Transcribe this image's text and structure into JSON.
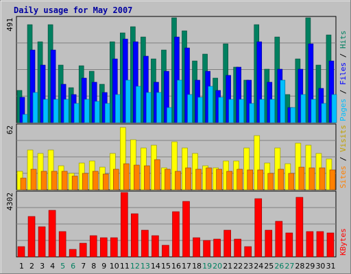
{
  "chart_data": [
    {
      "type": "bar",
      "title": "Daily usage for May 2007",
      "ymax_label": "491",
      "ylim": [
        0,
        491
      ],
      "grid": true,
      "legend_placement": "right-vertical",
      "categories": [
        "1",
        "2",
        "3",
        "4",
        "5",
        "6",
        "7",
        "8",
        "9",
        "10",
        "11",
        "12",
        "13",
        "14",
        "15",
        "16",
        "17",
        "18",
        "19",
        "20",
        "21",
        "22",
        "23",
        "24",
        "25",
        "26",
        "27",
        "28",
        "29",
        "30",
        "31"
      ],
      "series": [
        {
          "name": "Hits",
          "color": "#008060",
          "values": [
            150,
            460,
            380,
            460,
            270,
            165,
            265,
            240,
            180,
            380,
            420,
            450,
            400,
            300,
            340,
            491,
            430,
            290,
            320,
            210,
            370,
            260,
            200,
            460,
            250,
            400,
            130,
            300,
            491,
            270,
            410
          ]
        },
        {
          "name": "Files",
          "color": "#0000ff",
          "values": [
            120,
            340,
            270,
            340,
            180,
            130,
            210,
            190,
            140,
            300,
            390,
            380,
            310,
            190,
            240,
            400,
            350,
            200,
            240,
            150,
            220,
            260,
            200,
            380,
            190,
            250,
            70,
            250,
            370,
            160,
            290
          ]
        },
        {
          "name": "Pages",
          "color": "#00bfff",
          "values": [
            40,
            140,
            110,
            110,
            110,
            90,
            110,
            100,
            90,
            130,
            200,
            170,
            140,
            140,
            70,
            200,
            130,
            120,
            170,
            120,
            110,
            110,
            90,
            110,
            110,
            200,
            70,
            130,
            110,
            90,
            130
          ]
        }
      ]
    },
    {
      "type": "bar",
      "ymax_label": "62",
      "ylim": [
        0,
        62
      ],
      "grid": true,
      "legend_placement": "right-vertical",
      "categories": [
        "1",
        "2",
        "3",
        "4",
        "5",
        "6",
        "7",
        "8",
        "9",
        "10",
        "11",
        "12",
        "13",
        "14",
        "15",
        "16",
        "17",
        "18",
        "19",
        "20",
        "21",
        "22",
        "23",
        "24",
        "25",
        "26",
        "27",
        "28",
        "29",
        "30",
        "31"
      ],
      "series": [
        {
          "name": "Visits",
          "color": "#ffff00",
          "values": [
            18,
            38,
            35,
            38,
            23,
            16,
            26,
            28,
            22,
            35,
            60,
            48,
            40,
            43,
            21,
            46,
            40,
            35,
            23,
            21,
            28,
            28,
            40,
            52,
            26,
            40,
            25,
            45,
            43,
            35,
            30
          ]
        },
        {
          "name": "Sites",
          "color": "#ff8000",
          "values": [
            11,
            20,
            18,
            18,
            18,
            13,
            16,
            18,
            15,
            20,
            25,
            24,
            23,
            29,
            20,
            18,
            21,
            20,
            21,
            20,
            18,
            20,
            19,
            19,
            16,
            20,
            16,
            22,
            21,
            21,
            19
          ]
        }
      ]
    },
    {
      "type": "bar",
      "ymax_label": "4302",
      "ylim": [
        0,
        4302
      ],
      "grid": true,
      "legend_placement": "right-vertical",
      "categories": [
        "1",
        "2",
        "3",
        "4",
        "5",
        "6",
        "7",
        "8",
        "9",
        "10",
        "11",
        "12",
        "13",
        "14",
        "15",
        "16",
        "17",
        "18",
        "19",
        "20",
        "21",
        "22",
        "23",
        "24",
        "25",
        "26",
        "27",
        "28",
        "29",
        "30",
        "31"
      ],
      "series": [
        {
          "name": "KBytes",
          "color": "#ff0000",
          "values": [
            700,
            2700,
            2000,
            3100,
            1700,
            500,
            900,
            1400,
            1300,
            1300,
            4302,
            2900,
            1800,
            1400,
            760,
            3000,
            3700,
            1300,
            1100,
            1200,
            1800,
            1200,
            700,
            3900,
            1800,
            2400,
            1600,
            4000,
            1700,
            1700,
            1600
          ]
        }
      ]
    }
  ],
  "weekend_days": [
    "5",
    "6",
    "12",
    "13",
    "19",
    "20",
    "26",
    "27"
  ],
  "colors": {
    "background": "#c0c0c0",
    "title": "#0000a0",
    "weekday_label": "#000000",
    "weekend_label": "#008060",
    "panel_border": "#000000",
    "grid": "#808080"
  }
}
